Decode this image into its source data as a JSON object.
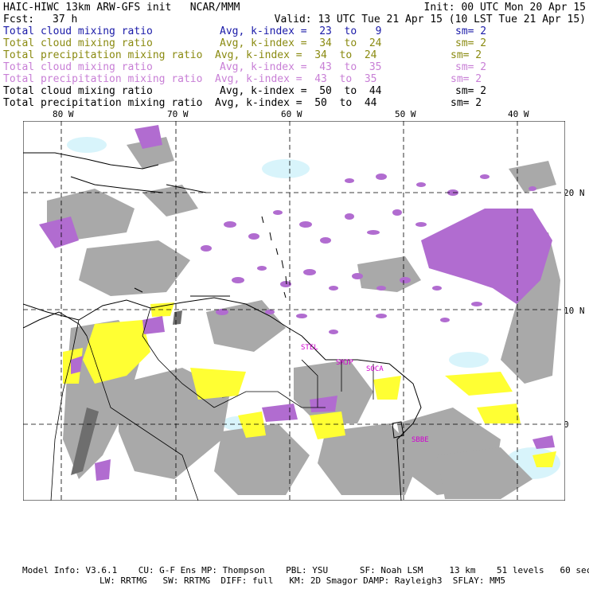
{
  "header": {
    "title": "HAIC-HIWC 13km ARW-GFS init   NCAR/MMM",
    "init": "Init: 00 UTC Mon 20 Apr 15",
    "fcst_label": "Fcst:",
    "fcst_value": "37 h",
    "valid": "Valid: 13 UTC Tue 21 Apr 15 (10 LST Tue 21 Apr 15)",
    "fields": [
      {
        "name": "Total cloud mixing ratio",
        "avg": "Avg, k-index =  23  to   9",
        "sm": "sm= 2",
        "color": "#1a1aa8"
      },
      {
        "name": "Total cloud mixing ratio",
        "avg": "Avg, k-index =  34  to  24",
        "sm": "sm= 2",
        "color": "#8a8a10"
      },
      {
        "name": "Total precipitation mixing ratio",
        "avg": "Avg, k-index =  34  to  24",
        "sm": "sm= 2",
        "color": "#8a8a10"
      },
      {
        "name": "Total cloud mixing ratio",
        "avg": "Avg, k-index =  43  to  35",
        "sm": "sm= 2",
        "color": "#c87fd6"
      },
      {
        "name": "Total precipitation mixing ratio",
        "avg": "Avg, k-index =  43  to  35",
        "sm": "sm= 2",
        "color": "#c87fd6"
      },
      {
        "name": "Total cloud mixing ratio",
        "avg": "Avg, k-index =  50  to  44",
        "sm": "sm= 2",
        "color": "#000000"
      },
      {
        "name": "Total precipitation mixing ratio",
        "avg": "Avg, k-index =  50  to  44",
        "sm": "sm= 2",
        "color": "#000000"
      }
    ]
  },
  "map": {
    "lon_labels": [
      "80 W",
      "70 W",
      "60 W",
      "50 W",
      "40 W"
    ],
    "lat_labels": [
      "20 N",
      "10 N",
      "0"
    ],
    "sites": [
      "STEL",
      "SMJP",
      "SOCA",
      "SBBE"
    ],
    "colors": {
      "low_cloud": "#a9a9a9",
      "dark_cloud": "#6e6e6e",
      "yellow": "#ffff33",
      "purple": "#b16cd0",
      "light_cyan": "#d8f4fb",
      "grid": "#000000"
    }
  },
  "footer": {
    "line1": "Model Info: V3.6.1    CU: G-F Ens MP: Thompson    PBL: YSU      SF: Noah LSM     13 km    51 levels   60 sec",
    "line2": "LW: RRTMG   SW: RRTMG  DIFF: full   KM: 2D Smagor DAMP: Rayleigh3  SFLAY: MM5"
  }
}
